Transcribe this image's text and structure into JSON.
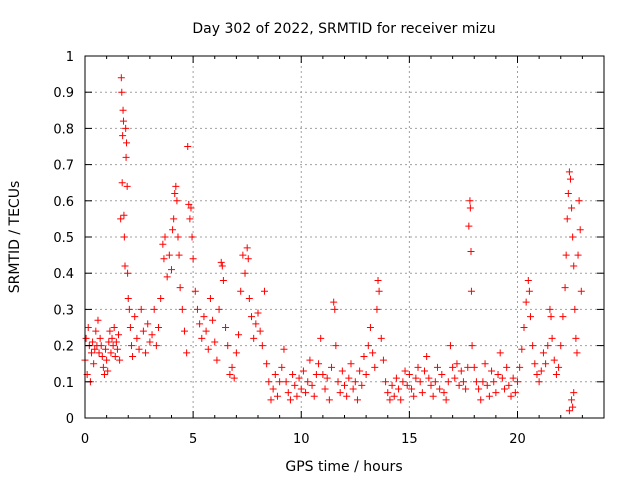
{
  "chart_data": {
    "type": "scatter",
    "title": "Day 302 of 2022, SRMTID for receiver mizu",
    "xlabel": "GPS time / hours",
    "ylabel": "SRMTID / TECUs",
    "xlim": [
      0,
      24
    ],
    "ylim": [
      0,
      1
    ],
    "x_ticks": [
      0,
      5,
      10,
      15,
      20
    ],
    "x_tick_labels": [
      "0",
      "5",
      "10",
      "15",
      "20"
    ],
    "y_ticks": [
      0,
      0.1,
      0.2,
      0.3,
      0.4,
      0.5,
      0.6,
      0.7,
      0.8,
      0.9,
      1
    ],
    "y_tick_labels": [
      "0",
      "0.1",
      "0.2",
      "0.3",
      "0.4",
      "0.5",
      "0.6",
      "0.7",
      "0.8",
      "0.9",
      "1"
    ],
    "grid": true,
    "marker": "+",
    "color": "#ff0000",
    "series": [
      {
        "name": "SRMTID",
        "points": [
          [
            0.0,
            0.16
          ],
          [
            0.05,
            0.22
          ],
          [
            0.1,
            0.12
          ],
          [
            0.15,
            0.25
          ],
          [
            0.2,
            0.2
          ],
          [
            0.25,
            0.1
          ],
          [
            0.3,
            0.18
          ],
          [
            0.35,
            0.21
          ],
          [
            0.4,
            0.15
          ],
          [
            0.45,
            0.19
          ],
          [
            0.5,
            0.24
          ],
          [
            0.55,
            0.2
          ],
          [
            0.6,
            0.27
          ],
          [
            0.65,
            0.18
          ],
          [
            0.7,
            0.22
          ],
          [
            0.75,
            0.2
          ],
          [
            0.8,
            0.17
          ],
          [
            0.85,
            0.14
          ],
          [
            0.9,
            0.12
          ],
          [
            0.95,
            0.19
          ],
          [
            1.0,
            0.16
          ],
          [
            1.05,
            0.13
          ],
          [
            1.1,
            0.21
          ],
          [
            1.15,
            0.24
          ],
          [
            1.2,
            0.18
          ],
          [
            1.25,
            0.22
          ],
          [
            1.3,
            0.2
          ],
          [
            1.35,
            0.25
          ],
          [
            1.4,
            0.17
          ],
          [
            1.45,
            0.21
          ],
          [
            1.5,
            0.19
          ],
          [
            1.55,
            0.23
          ],
          [
            1.6,
            0.16
          ],
          [
            1.65,
            0.55
          ],
          [
            1.68,
            0.94
          ],
          [
            1.7,
            0.9
          ],
          [
            1.72,
            0.65
          ],
          [
            1.74,
            0.78
          ],
          [
            1.76,
            0.85
          ],
          [
            1.78,
            0.82
          ],
          [
            1.8,
            0.56
          ],
          [
            1.82,
            0.5
          ],
          [
            1.85,
            0.42
          ],
          [
            1.88,
            0.8
          ],
          [
            1.9,
            0.72
          ],
          [
            1.92,
            0.76
          ],
          [
            1.95,
            0.64
          ],
          [
            1.97,
            0.4
          ],
          [
            2.0,
            0.33
          ],
          [
            2.05,
            0.3
          ],
          [
            2.1,
            0.25
          ],
          [
            2.15,
            0.2
          ],
          [
            2.2,
            0.17
          ],
          [
            2.3,
            0.28
          ],
          [
            2.4,
            0.22
          ],
          [
            2.5,
            0.19
          ],
          [
            2.6,
            0.3
          ],
          [
            2.7,
            0.24
          ],
          [
            2.8,
            0.18
          ],
          [
            2.9,
            0.26
          ],
          [
            3.0,
            0.21
          ],
          [
            3.1,
            0.23
          ],
          [
            3.2,
            0.3
          ],
          [
            3.3,
            0.2
          ],
          [
            3.4,
            0.25
          ],
          [
            3.5,
            0.33
          ],
          [
            3.6,
            0.48
          ],
          [
            3.65,
            0.44
          ],
          [
            3.7,
            0.5
          ],
          [
            3.8,
            0.39
          ],
          [
            3.9,
            0.45
          ],
          [
            4.0,
            0.41
          ],
          [
            4.05,
            0.52
          ],
          [
            4.1,
            0.55
          ],
          [
            4.15,
            0.62
          ],
          [
            4.2,
            0.64
          ],
          [
            4.25,
            0.6
          ],
          [
            4.3,
            0.5
          ],
          [
            4.35,
            0.45
          ],
          [
            4.4,
            0.36
          ],
          [
            4.5,
            0.3
          ],
          [
            4.6,
            0.24
          ],
          [
            4.7,
            0.18
          ],
          [
            4.75,
            0.75
          ],
          [
            4.8,
            0.59
          ],
          [
            4.85,
            0.55
          ],
          [
            4.9,
            0.58
          ],
          [
            4.95,
            0.5
          ],
          [
            5.0,
            0.44
          ],
          [
            5.1,
            0.35
          ],
          [
            5.2,
            0.3
          ],
          [
            5.3,
            0.26
          ],
          [
            5.4,
            0.22
          ],
          [
            5.5,
            0.28
          ],
          [
            5.6,
            0.24
          ],
          [
            5.7,
            0.19
          ],
          [
            5.8,
            0.33
          ],
          [
            5.9,
            0.27
          ],
          [
            6.0,
            0.21
          ],
          [
            6.1,
            0.16
          ],
          [
            6.2,
            0.3
          ],
          [
            6.3,
            0.43
          ],
          [
            6.35,
            0.42
          ],
          [
            6.4,
            0.38
          ],
          [
            6.5,
            0.25
          ],
          [
            6.6,
            0.2
          ],
          [
            6.7,
            0.12
          ],
          [
            6.8,
            0.14
          ],
          [
            6.9,
            0.11
          ],
          [
            7.0,
            0.18
          ],
          [
            7.1,
            0.23
          ],
          [
            7.2,
            0.35
          ],
          [
            7.3,
            0.45
          ],
          [
            7.4,
            0.4
          ],
          [
            7.5,
            0.47
          ],
          [
            7.55,
            0.44
          ],
          [
            7.6,
            0.33
          ],
          [
            7.7,
            0.28
          ],
          [
            7.8,
            0.22
          ],
          [
            7.9,
            0.26
          ],
          [
            8.0,
            0.29
          ],
          [
            8.1,
            0.24
          ],
          [
            8.2,
            0.2
          ],
          [
            8.3,
            0.35
          ],
          [
            8.4,
            0.15
          ],
          [
            8.5,
            0.1
          ],
          [
            8.6,
            0.05
          ],
          [
            8.7,
            0.08
          ],
          [
            8.8,
            0.12
          ],
          [
            8.9,
            0.06
          ],
          [
            9.0,
            0.1
          ],
          [
            9.1,
            0.14
          ],
          [
            9.2,
            0.19
          ],
          [
            9.3,
            0.1
          ],
          [
            9.4,
            0.07
          ],
          [
            9.5,
            0.05
          ],
          [
            9.6,
            0.12
          ],
          [
            9.7,
            0.09
          ],
          [
            9.8,
            0.06
          ],
          [
            9.9,
            0.11
          ],
          [
            10.0,
            0.08
          ],
          [
            10.1,
            0.13
          ],
          [
            10.2,
            0.07
          ],
          [
            10.3,
            0.1
          ],
          [
            10.4,
            0.16
          ],
          [
            10.5,
            0.09
          ],
          [
            10.6,
            0.06
          ],
          [
            10.7,
            0.12
          ],
          [
            10.8,
            0.15
          ],
          [
            10.9,
            0.22
          ],
          [
            11.0,
            0.12
          ],
          [
            11.1,
            0.08
          ],
          [
            11.2,
            0.11
          ],
          [
            11.3,
            0.05
          ],
          [
            11.4,
            0.14
          ],
          [
            11.5,
            0.32
          ],
          [
            11.55,
            0.3
          ],
          [
            11.6,
            0.2
          ],
          [
            11.7,
            0.1
          ],
          [
            11.8,
            0.07
          ],
          [
            11.9,
            0.13
          ],
          [
            12.0,
            0.09
          ],
          [
            12.1,
            0.06
          ],
          [
            12.2,
            0.11
          ],
          [
            12.3,
            0.15
          ],
          [
            12.4,
            0.08
          ],
          [
            12.5,
            0.1
          ],
          [
            12.6,
            0.05
          ],
          [
            12.7,
            0.13
          ],
          [
            12.8,
            0.09
          ],
          [
            12.9,
            0.17
          ],
          [
            13.0,
            0.12
          ],
          [
            13.1,
            0.2
          ],
          [
            13.2,
            0.25
          ],
          [
            13.3,
            0.18
          ],
          [
            13.4,
            0.14
          ],
          [
            13.5,
            0.3
          ],
          [
            13.55,
            0.38
          ],
          [
            13.6,
            0.35
          ],
          [
            13.7,
            0.22
          ],
          [
            13.8,
            0.16
          ],
          [
            13.9,
            0.1
          ],
          [
            14.0,
            0.07
          ],
          [
            14.1,
            0.05
          ],
          [
            14.2,
            0.09
          ],
          [
            14.3,
            0.06
          ],
          [
            14.4,
            0.11
          ],
          [
            14.5,
            0.08
          ],
          [
            14.6,
            0.05
          ],
          [
            14.7,
            0.1
          ],
          [
            14.8,
            0.13
          ],
          [
            14.9,
            0.09
          ],
          [
            15.0,
            0.12
          ],
          [
            15.1,
            0.08
          ],
          [
            15.2,
            0.06
          ],
          [
            15.3,
            0.11
          ],
          [
            15.4,
            0.14
          ],
          [
            15.5,
            0.1
          ],
          [
            15.6,
            0.07
          ],
          [
            15.7,
            0.13
          ],
          [
            15.8,
            0.17
          ],
          [
            15.9,
            0.11
          ],
          [
            16.0,
            0.09
          ],
          [
            16.1,
            0.06
          ],
          [
            16.2,
            0.1
          ],
          [
            16.3,
            0.14
          ],
          [
            16.4,
            0.08
          ],
          [
            16.5,
            0.12
          ],
          [
            16.6,
            0.07
          ],
          [
            16.7,
            0.05
          ],
          [
            16.8,
            0.1
          ],
          [
            16.9,
            0.2
          ],
          [
            17.0,
            0.14
          ],
          [
            17.1,
            0.11
          ],
          [
            17.2,
            0.15
          ],
          [
            17.3,
            0.09
          ],
          [
            17.4,
            0.13
          ],
          [
            17.5,
            0.1
          ],
          [
            17.6,
            0.08
          ],
          [
            17.7,
            0.14
          ],
          [
            17.75,
            0.53
          ],
          [
            17.8,
            0.6
          ],
          [
            17.82,
            0.58
          ],
          [
            17.85,
            0.46
          ],
          [
            17.87,
            0.35
          ],
          [
            17.9,
            0.2
          ],
          [
            18.0,
            0.14
          ],
          [
            18.1,
            0.1
          ],
          [
            18.2,
            0.08
          ],
          [
            18.3,
            0.05
          ],
          [
            18.4,
            0.1
          ],
          [
            18.5,
            0.15
          ],
          [
            18.6,
            0.09
          ],
          [
            18.7,
            0.06
          ],
          [
            18.8,
            0.13
          ],
          [
            18.9,
            0.1
          ],
          [
            19.0,
            0.07
          ],
          [
            19.1,
            0.12
          ],
          [
            19.2,
            0.18
          ],
          [
            19.3,
            0.11
          ],
          [
            19.4,
            0.08
          ],
          [
            19.5,
            0.14
          ],
          [
            19.6,
            0.09
          ],
          [
            19.7,
            0.06
          ],
          [
            19.8,
            0.11
          ],
          [
            19.9,
            0.07
          ],
          [
            20.0,
            0.1
          ],
          [
            20.1,
            0.14
          ],
          [
            20.2,
            0.19
          ],
          [
            20.3,
            0.25
          ],
          [
            20.4,
            0.32
          ],
          [
            20.5,
            0.38
          ],
          [
            20.55,
            0.35
          ],
          [
            20.6,
            0.28
          ],
          [
            20.7,
            0.2
          ],
          [
            20.8,
            0.15
          ],
          [
            20.9,
            0.12
          ],
          [
            21.0,
            0.1
          ],
          [
            21.1,
            0.13
          ],
          [
            21.2,
            0.18
          ],
          [
            21.3,
            0.15
          ],
          [
            21.4,
            0.2
          ],
          [
            21.5,
            0.3
          ],
          [
            21.55,
            0.28
          ],
          [
            21.6,
            0.22
          ],
          [
            21.7,
            0.16
          ],
          [
            21.8,
            0.12
          ],
          [
            21.9,
            0.14
          ],
          [
            22.0,
            0.2
          ],
          [
            22.1,
            0.28
          ],
          [
            22.2,
            0.36
          ],
          [
            22.25,
            0.45
          ],
          [
            22.3,
            0.55
          ],
          [
            22.35,
            0.62
          ],
          [
            22.4,
            0.68
          ],
          [
            22.45,
            0.66
          ],
          [
            22.5,
            0.58
          ],
          [
            22.55,
            0.5
          ],
          [
            22.6,
            0.42
          ],
          [
            22.65,
            0.3
          ],
          [
            22.7,
            0.22
          ],
          [
            22.75,
            0.18
          ],
          [
            22.8,
            0.45
          ],
          [
            22.85,
            0.6
          ],
          [
            22.9,
            0.52
          ],
          [
            22.95,
            0.35
          ],
          [
            22.5,
            0.05
          ],
          [
            22.55,
            0.03
          ],
          [
            22.6,
            0.07
          ],
          [
            22.4,
            0.02
          ]
        ]
      }
    ]
  }
}
